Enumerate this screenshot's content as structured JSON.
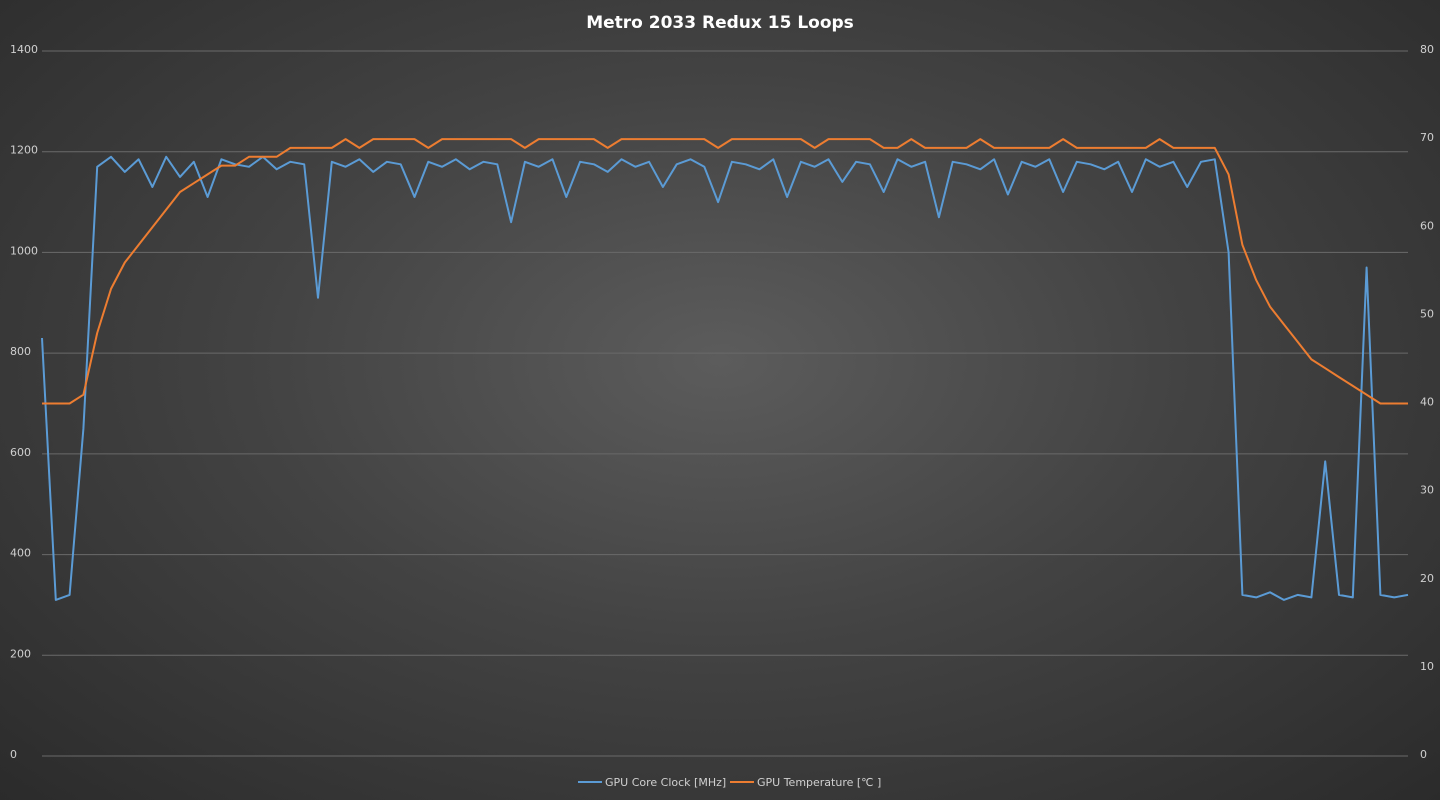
{
  "chart_data": {
    "type": "line",
    "title": "Metro  2033  Redux  15  Loops",
    "ylim": [
      0,
      1400
    ],
    "yticks": [
      0,
      200,
      400,
      600,
      800,
      1000,
      1200,
      1400
    ],
    "y2lim": [
      0,
      80
    ],
    "y2ticks": [
      0,
      10,
      20,
      30,
      40,
      50,
      60,
      70,
      80
    ],
    "grid": true,
    "legend": "bottom",
    "series": [
      {
        "name": "GPU Core Clock [MHz]",
        "color": "#5b9bd5",
        "values": [
          830,
          310,
          320,
          650,
          1170,
          1190,
          1160,
          1185,
          1130,
          1190,
          1150,
          1180,
          1110,
          1185,
          1175,
          1170,
          1190,
          1165,
          1180,
          1175,
          910,
          1180,
          1170,
          1185,
          1160,
          1180,
          1175,
          1110,
          1180,
          1170,
          1185,
          1165,
          1180,
          1175,
          1060,
          1180,
          1170,
          1185,
          1110,
          1180,
          1175,
          1160,
          1185,
          1170,
          1180,
          1130,
          1175,
          1185,
          1170,
          1100,
          1180,
          1175,
          1165,
          1185,
          1110,
          1180,
          1170,
          1185,
          1140,
          1180,
          1175,
          1120,
          1185,
          1170,
          1180,
          1070,
          1180,
          1175,
          1165,
          1185,
          1115,
          1180,
          1170,
          1185,
          1120,
          1180,
          1175,
          1165,
          1180,
          1120,
          1185,
          1170,
          1180,
          1130,
          1180,
          1185,
          1000,
          320,
          315,
          325,
          310,
          320,
          315,
          585,
          320,
          315,
          970,
          320,
          315,
          320
        ]
      },
      {
        "name": "GPU Temperature [℃ ]",
        "color": "#ed7d31",
        "axis": "y2",
        "values": [
          40,
          40,
          40,
          41,
          48,
          53,
          56,
          58,
          60,
          62,
          64,
          65,
          66,
          67,
          67,
          68,
          68,
          68,
          69,
          69,
          69,
          69,
          70,
          69,
          70,
          70,
          70,
          70,
          69,
          70,
          70,
          70,
          70,
          70,
          70,
          69,
          70,
          70,
          70,
          70,
          70,
          69,
          70,
          70,
          70,
          70,
          70,
          70,
          70,
          69,
          70,
          70,
          70,
          70,
          70,
          70,
          69,
          70,
          70,
          70,
          70,
          69,
          69,
          70,
          69,
          69,
          69,
          69,
          70,
          69,
          69,
          69,
          69,
          69,
          70,
          69,
          69,
          69,
          69,
          69,
          69,
          70,
          69,
          69,
          69,
          69,
          66,
          58,
          54,
          51,
          49,
          47,
          45,
          44,
          43,
          42,
          41,
          40,
          40,
          40
        ]
      }
    ]
  }
}
